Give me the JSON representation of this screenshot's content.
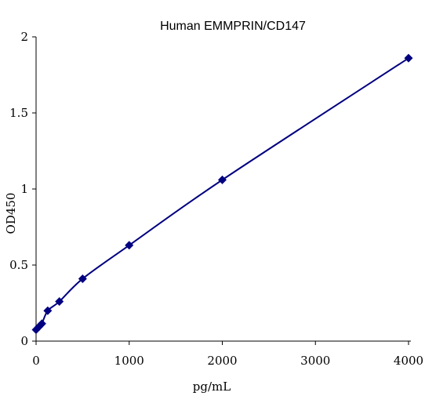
{
  "chart_data": {
    "type": "line",
    "title": "Human EMMPRIN/CD147",
    "xlabel": "pg/mL",
    "ylabel": "OD450",
    "xlim": [
      0,
      4000
    ],
    "ylim": [
      0,
      2
    ],
    "xticks": [
      0,
      1000,
      2000,
      3000,
      4000
    ],
    "xtick_labels": [
      "0",
      "1000",
      "2000",
      "3000",
      "4000"
    ],
    "yticks": [
      0,
      0.5,
      1,
      1.5,
      2
    ],
    "ytick_labels": [
      "0",
      "0.5",
      "1",
      "1.5",
      "2"
    ],
    "grid": false,
    "series": [
      {
        "color": "#000080",
        "marker": "diamond",
        "smooth": true,
        "x": [
          0,
          31.25,
          62.5,
          125,
          250,
          500,
          1000,
          2000,
          4000
        ],
        "y": [
          0.075,
          0.095,
          0.115,
          0.2,
          0.26,
          0.41,
          0.63,
          1.06,
          1.86
        ]
      }
    ]
  }
}
